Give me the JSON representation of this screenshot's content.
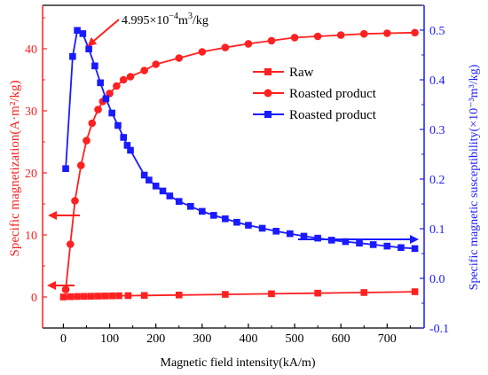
{
  "chart_data": {
    "type": "line",
    "title": "",
    "xlabel": "Magnetic field intensity(kA/m)",
    "ylabel_left": "Specific magnetization(A·m²/kg)",
    "ylabel_right": "Specific magnetic susceptibility(×10⁻³m³/kg)",
    "xlim": [
      -45,
      780
    ],
    "ylim_left": [
      -5,
      47
    ],
    "ylim_right": [
      -0.1,
      0.55
    ],
    "x_ticks": [
      0,
      100,
      200,
      300,
      400,
      500,
      600,
      700
    ],
    "y_left_ticks": [
      0,
      10,
      20,
      30,
      40
    ],
    "y_right_ticks": [
      -0.1,
      0.0,
      0.1,
      0.2,
      0.3,
      0.4,
      0.5
    ],
    "grid": false,
    "legend_position": "top-right",
    "colors": {
      "raw": "#ff2020",
      "roasted_magnetization": "#ff2020",
      "roasted_susceptibility": "#1a1aff",
      "left_axis": "#ff2020",
      "right_axis": "#1a1aff",
      "bottom_axis": "#000000"
    },
    "annotation": {
      "text_mantissa": "4.995×10",
      "text_exp": "−4",
      "text_unit": "m",
      "text_unit_exp": "3",
      "text_tail": "/kg",
      "x": 30,
      "y_right": 0.4995
    },
    "series": [
      {
        "name": "Raw",
        "axis": "left",
        "marker": "square",
        "x": [
          0,
          15,
          30,
          45,
          60,
          75,
          90,
          105,
          120,
          140,
          175,
          250,
          350,
          450,
          550,
          650,
          760
        ],
        "values": [
          0,
          0.05,
          0.08,
          0.1,
          0.12,
          0.14,
          0.16,
          0.18,
          0.2,
          0.22,
          0.25,
          0.32,
          0.42,
          0.52,
          0.62,
          0.72,
          0.85
        ]
      },
      {
        "name": "Roasted product",
        "axis": "left",
        "marker": "circle",
        "x": [
          5,
          15,
          25,
          38,
          50,
          62,
          75,
          85,
          100,
          115,
          130,
          145,
          175,
          200,
          250,
          300,
          350,
          400,
          450,
          500,
          550,
          600,
          650,
          700,
          760
        ],
        "values": [
          1.2,
          8.5,
          15.5,
          21.2,
          25.2,
          28.0,
          30.2,
          31.5,
          32.8,
          34.0,
          35.0,
          35.5,
          36.5,
          37.5,
          38.5,
          39.5,
          40.2,
          40.8,
          41.3,
          41.8,
          42.0,
          42.2,
          42.4,
          42.5,
          42.6
        ]
      },
      {
        "name": "Roasted product",
        "axis": "right",
        "marker": "square",
        "x": [
          5,
          20,
          30,
          42,
          55,
          68,
          80,
          92,
          105,
          118,
          130,
          138,
          145,
          175,
          185,
          200,
          215,
          230,
          250,
          275,
          300,
          325,
          350,
          375,
          400,
          430,
          460,
          490,
          520,
          550,
          580,
          610,
          640,
          670,
          700,
          730,
          760
        ],
        "values": [
          0.221,
          0.447,
          0.4995,
          0.493,
          0.462,
          0.428,
          0.394,
          0.362,
          0.333,
          0.308,
          0.284,
          0.268,
          0.258,
          0.208,
          0.198,
          0.186,
          0.176,
          0.166,
          0.155,
          0.145,
          0.135,
          0.127,
          0.12,
          0.113,
          0.107,
          0.101,
          0.095,
          0.09,
          0.085,
          0.081,
          0.077,
          0.074,
          0.071,
          0.068,
          0.065,
          0.062,
          0.06
        ]
      }
    ]
  }
}
